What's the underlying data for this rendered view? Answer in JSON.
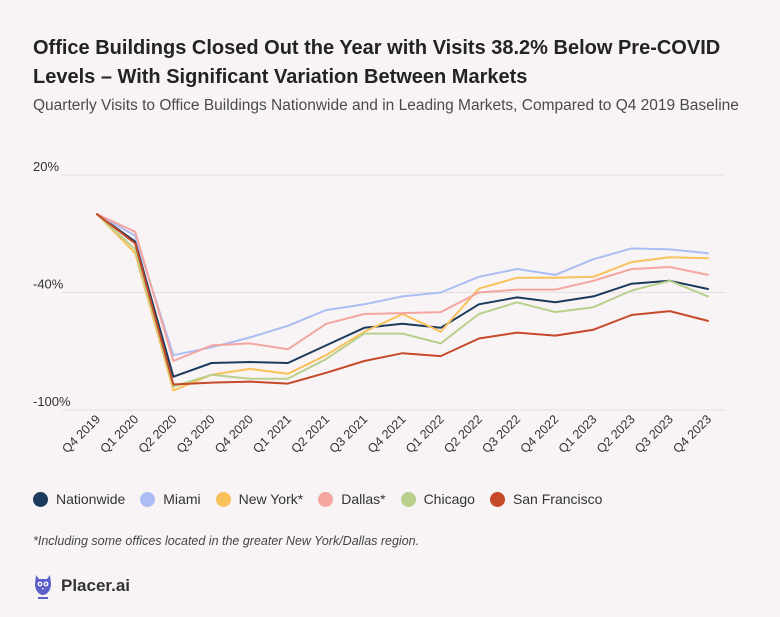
{
  "header": {
    "title": "Office Buildings Closed Out the Year with Visits 38.2% Below Pre-COVID Levels – With Significant Variation Between Markets",
    "subtitle": "Quarterly Visits to Office Buildings Nationwide and in Leading Markets, Compared to Q4 2019 Baseline"
  },
  "footnote": "*Including some offices located in the greater New York/Dallas region.",
  "brand": {
    "name": "Placer.ai",
    "icon": "placer-owl-icon",
    "color": "#5b5fc7"
  },
  "chart_data": {
    "type": "line",
    "title": "Quarterly Visits to Office Buildings Nationwide and in Leading Markets, Compared to Q4 2019 Baseline",
    "xlabel": "",
    "ylabel": "",
    "ylim": [
      -100,
      20
    ],
    "yticks": [
      20,
      -40,
      -100
    ],
    "ytick_labels": [
      "20%",
      "-40%",
      "-100%"
    ],
    "grid": true,
    "legend_position": "bottom",
    "categories": [
      "Q4 2019",
      "Q1 2020",
      "Q2 2020",
      "Q3 2020",
      "Q4 2020",
      "Q1 2021",
      "Q2 2021",
      "Q3 2021",
      "Q4 2021",
      "Q1 2022",
      "Q2 2022",
      "Q3 2022",
      "Q4 2022",
      "Q1 2023",
      "Q2 2023",
      "Q3 2023",
      "Q4 2023"
    ],
    "series": [
      {
        "name": "Nationwide",
        "color": "#1b3a5c",
        "values": [
          0,
          -14,
          -83,
          -76,
          -75.5,
          -76,
          -67,
          -58,
          -56,
          -58,
          -46,
          -42.5,
          -45,
          -42,
          -35.5,
          -34,
          -38.2
        ]
      },
      {
        "name": "Miami",
        "color": "#abbdf2",
        "values": [
          0,
          -11,
          -72,
          -68,
          -63,
          -57,
          -49,
          -46,
          -42,
          -40,
          -32,
          -28,
          -31,
          -23,
          -17.5,
          -18,
          -20
        ]
      },
      {
        "name": "New York*",
        "color": "#f9c15a",
        "values": [
          0,
          -20,
          -90,
          -82,
          -79,
          -81.5,
          -72,
          -60,
          -51,
          -60,
          -38,
          -32.5,
          -32.5,
          -32,
          -24.5,
          -22,
          -22.5
        ]
      },
      {
        "name": "Dallas*",
        "color": "#f4a5a0",
        "values": [
          0,
          -9,
          -75,
          -67,
          -66,
          -69,
          -56,
          -51,
          -50.5,
          -50,
          -40,
          -38.5,
          -38.5,
          -34,
          -28,
          -27,
          -31
        ]
      },
      {
        "name": "Chicago",
        "color": "#b8d08b",
        "values": [
          0,
          -18,
          -88,
          -82,
          -84,
          -84,
          -74,
          -61,
          -61,
          -66,
          -51,
          -45,
          -50,
          -47.5,
          -39,
          -34,
          -42
        ]
      },
      {
        "name": "San Francisco",
        "color": "#c6492a",
        "values": [
          0,
          -15,
          -87,
          -86,
          -85.5,
          -86.5,
          -81,
          -75,
          -71,
          -72.5,
          -63.5,
          -60.5,
          -62,
          -59,
          -51.5,
          -49.5,
          -54.5
        ]
      }
    ]
  }
}
